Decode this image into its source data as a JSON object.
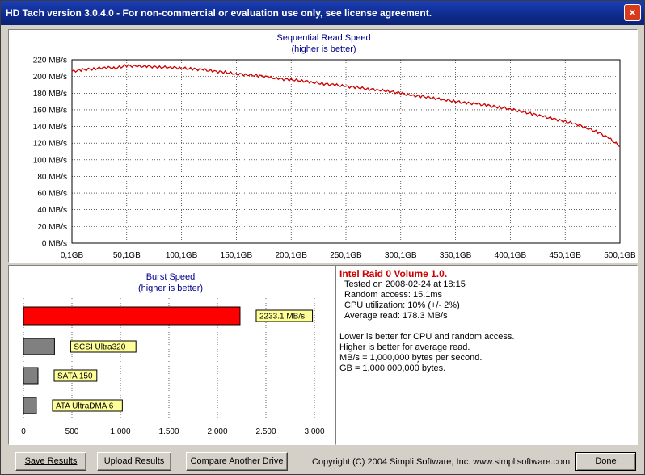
{
  "window": {
    "title": "HD Tach version 3.0.4.0  - For non-commercial or evaluation use only, see license agreement.",
    "close_glyph": "×"
  },
  "seq_chart": {
    "title_line1": "Sequential Read Speed",
    "title_line2": "(higher is better)"
  },
  "burst_chart": {
    "title_line1": "Burst Speed",
    "title_line2": "(higher is better)"
  },
  "info": {
    "drive_name": "Intel Raid 0 Volume 1.0.",
    "lines": [
      "Tested on 2008-02-24 at 18:15",
      "Random access: 15.1ms",
      "CPU utilization: 10% (+/- 2%)",
      "Average read: 178.3 MB/s"
    ],
    "notes": [
      "Lower is better for CPU and random access.",
      "Higher is better for average read.",
      "MB/s = 1,000,000 bytes per second.",
      "GB = 1,000,000,000 bytes."
    ]
  },
  "buttons": {
    "save": "Save Results",
    "upload": "Upload Results",
    "compare": "Compare Another Drive",
    "done": "Done"
  },
  "copyright": "Copyright (C) 2004 Simpli Software, Inc. www.simplisoftware.com",
  "colors": {
    "line": "#cc0000",
    "burst_main": "#ff0000",
    "burst_ref": "#808080",
    "label_bg": "#ffff99",
    "title_text": "#00008b"
  },
  "chart_data": [
    {
      "type": "line",
      "title": "Sequential Read Speed",
      "subtitle": "(higher is better)",
      "xlabel": "",
      "ylabel": "",
      "x_ticks": [
        "0,1GB",
        "50,1GB",
        "100,1GB",
        "150,1GB",
        "200,1GB",
        "250,1GB",
        "300,1GB",
        "350,1GB",
        "400,1GB",
        "450,1GB",
        "500,1GB"
      ],
      "y_ticks": [
        "0 MB/s",
        "20 MB/s",
        "40 MB/s",
        "60 MB/s",
        "80 MB/s",
        "100 MB/s",
        "120 MB/s",
        "140 MB/s",
        "160 MB/s",
        "180 MB/s",
        "200 MB/s",
        "220 MB/s"
      ],
      "xlim": [
        0.1,
        500.1
      ],
      "ylim": [
        0,
        220
      ],
      "grid": true,
      "series": [
        {
          "x": [
            0.1,
            10,
            20,
            30,
            40,
            50,
            60,
            70,
            80,
            90,
            100,
            110,
            120,
            130,
            140,
            150,
            160,
            170,
            180,
            190,
            200,
            210,
            220,
            230,
            240,
            250,
            260,
            270,
            280,
            290,
            300,
            310,
            320,
            330,
            340,
            350,
            360,
            370,
            380,
            390,
            400,
            410,
            420,
            430,
            440,
            450,
            460,
            470,
            480,
            490,
            500.1
          ],
          "values": [
            206,
            208,
            209,
            211,
            210,
            213,
            212,
            212,
            211,
            211,
            210,
            209,
            208,
            206,
            205,
            203,
            202,
            201,
            199,
            197,
            196,
            195,
            193,
            191,
            190,
            188,
            187,
            185,
            184,
            182,
            180,
            177,
            176,
            174,
            172,
            170,
            168,
            167,
            165,
            163,
            161,
            158,
            155,
            152,
            149,
            146,
            143,
            138,
            133,
            126,
            116
          ]
        }
      ]
    },
    {
      "type": "bar",
      "title": "Burst Speed",
      "subtitle": "(higher is better)",
      "categories": [
        "2233.1 MB/s",
        "SCSI Ultra320",
        "SATA 150",
        "ATA UltraDMA 6"
      ],
      "values": [
        2233.1,
        320,
        150,
        133
      ],
      "x_ticks": [
        "0",
        "500",
        "1.000",
        "1.500",
        "2.000",
        "2.500",
        "3.000"
      ],
      "xlim": [
        0,
        3000
      ]
    }
  ]
}
